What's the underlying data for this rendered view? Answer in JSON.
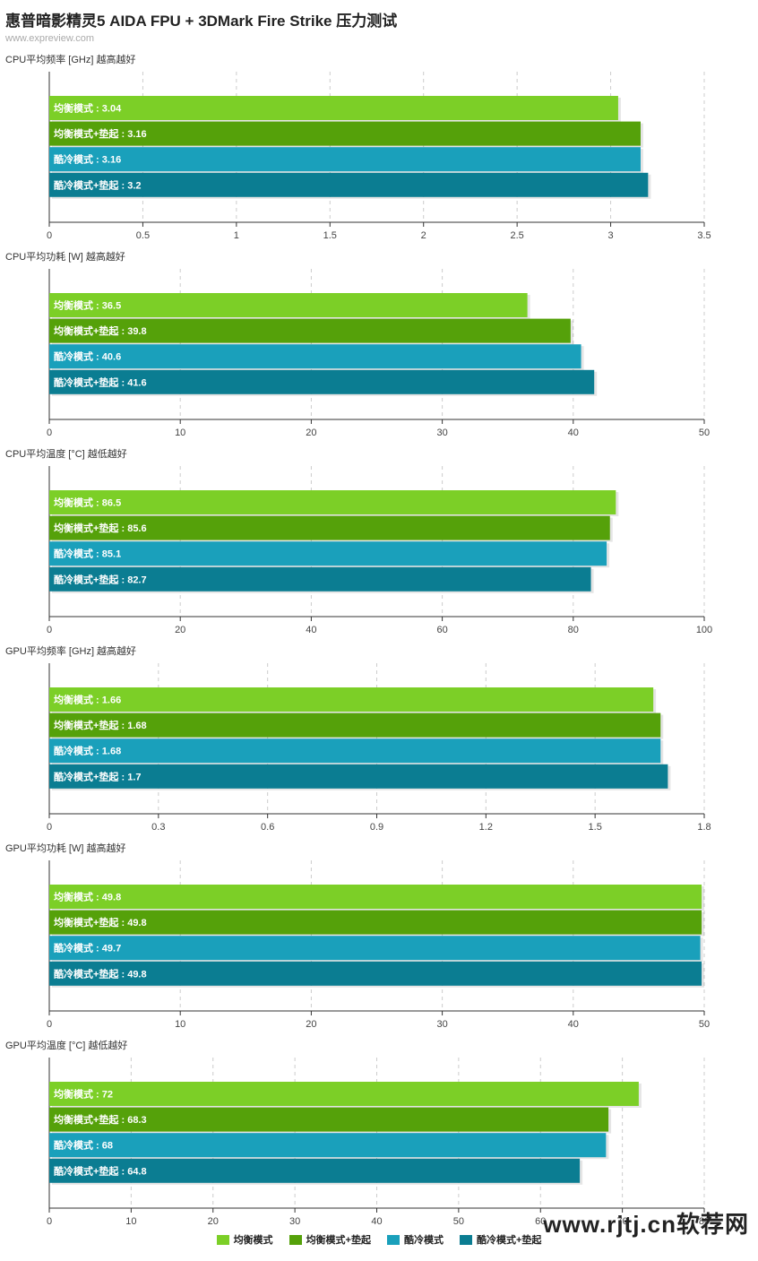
{
  "title": "惠普暗影精灵5 AIDA FPU + 3DMark Fire Strike 压力测试",
  "source": "www.expreview.com",
  "watermark": "www.rjtj.cn软荐网",
  "colors": [
    "#7ccf27",
    "#55a10a",
    "#1aa0bb",
    "#0b7d92"
  ],
  "legend": [
    "均衡模式",
    "均衡模式+垫起",
    "酷冷模式",
    "酷冷模式+垫起"
  ],
  "chart_data": [
    {
      "type": "bar",
      "orientation": "horizontal",
      "title": "CPU平均频率 [GHz] 越高越好",
      "categories": [
        "均衡模式",
        "均衡模式+垫起",
        "酷冷模式",
        "酷冷模式+垫起"
      ],
      "values": [
        3.04,
        3.16,
        3.16,
        3.2
      ],
      "bar_labels": [
        "均衡模式 : 3.04",
        "均衡模式+垫起 : 3.16",
        "酷冷模式 : 3.16",
        "酷冷模式+垫起 : 3.2"
      ],
      "xlim": [
        0,
        3.5
      ],
      "xticks": [
        "0",
        "0.5",
        "1",
        "1.5",
        "2",
        "2.5",
        "3",
        "3.5"
      ]
    },
    {
      "type": "bar",
      "orientation": "horizontal",
      "title": "CPU平均功耗 [W] 越高越好",
      "categories": [
        "均衡模式",
        "均衡模式+垫起",
        "酷冷模式",
        "酷冷模式+垫起"
      ],
      "values": [
        36.5,
        39.8,
        40.6,
        41.6
      ],
      "bar_labels": [
        "均衡模式 : 36.5",
        "均衡模式+垫起 : 39.8",
        "酷冷模式 : 40.6",
        "酷冷模式+垫起 : 41.6"
      ],
      "xlim": [
        0,
        50
      ],
      "xticks": [
        "0",
        "10",
        "20",
        "30",
        "40",
        "50"
      ]
    },
    {
      "type": "bar",
      "orientation": "horizontal",
      "title": "CPU平均温度 [°C] 越低越好",
      "categories": [
        "均衡模式",
        "均衡模式+垫起",
        "酷冷模式",
        "酷冷模式+垫起"
      ],
      "values": [
        86.5,
        85.6,
        85.1,
        82.7
      ],
      "bar_labels": [
        "均衡模式 : 86.5",
        "均衡模式+垫起 : 85.6",
        "酷冷模式 : 85.1",
        "酷冷模式+垫起 : 82.7"
      ],
      "xlim": [
        0,
        100
      ],
      "xticks": [
        "0",
        "20",
        "40",
        "60",
        "80",
        "100"
      ]
    },
    {
      "type": "bar",
      "orientation": "horizontal",
      "title": "GPU平均频率 [GHz] 越高越好",
      "categories": [
        "均衡模式",
        "均衡模式+垫起",
        "酷冷模式",
        "酷冷模式+垫起"
      ],
      "values": [
        1.66,
        1.68,
        1.68,
        1.7
      ],
      "bar_labels": [
        "均衡模式 : 1.66",
        "均衡模式+垫起 : 1.68",
        "酷冷模式 : 1.68",
        "酷冷模式+垫起 : 1.7"
      ],
      "xlim": [
        0,
        1.8
      ],
      "xticks": [
        "0",
        "0.3",
        "0.6",
        "0.9",
        "1.2",
        "1.5",
        "1.8"
      ]
    },
    {
      "type": "bar",
      "orientation": "horizontal",
      "title": "GPU平均功耗 [W] 越高越好",
      "categories": [
        "均衡模式",
        "均衡模式+垫起",
        "酷冷模式",
        "酷冷模式+垫起"
      ],
      "values": [
        49.8,
        49.8,
        49.7,
        49.8
      ],
      "bar_labels": [
        "均衡模式 : 49.8",
        "均衡模式+垫起 : 49.8",
        "酷冷模式 : 49.7",
        "酷冷模式+垫起 : 49.8"
      ],
      "xlim": [
        0,
        50
      ],
      "xticks": [
        "0",
        "10",
        "20",
        "30",
        "40",
        "50"
      ]
    },
    {
      "type": "bar",
      "orientation": "horizontal",
      "title": "GPU平均温度 [°C] 越低越好",
      "categories": [
        "均衡模式",
        "均衡模式+垫起",
        "酷冷模式",
        "酷冷模式+垫起"
      ],
      "values": [
        72,
        68.3,
        68,
        64.8
      ],
      "bar_labels": [
        "均衡模式 : 72",
        "均衡模式+垫起 : 68.3",
        "酷冷模式 : 68",
        "酷冷模式+垫起 : 64.8"
      ],
      "xlim": [
        0,
        80
      ],
      "xticks": [
        "0",
        "10",
        "20",
        "30",
        "40",
        "50",
        "60",
        "70",
        "80"
      ]
    }
  ]
}
